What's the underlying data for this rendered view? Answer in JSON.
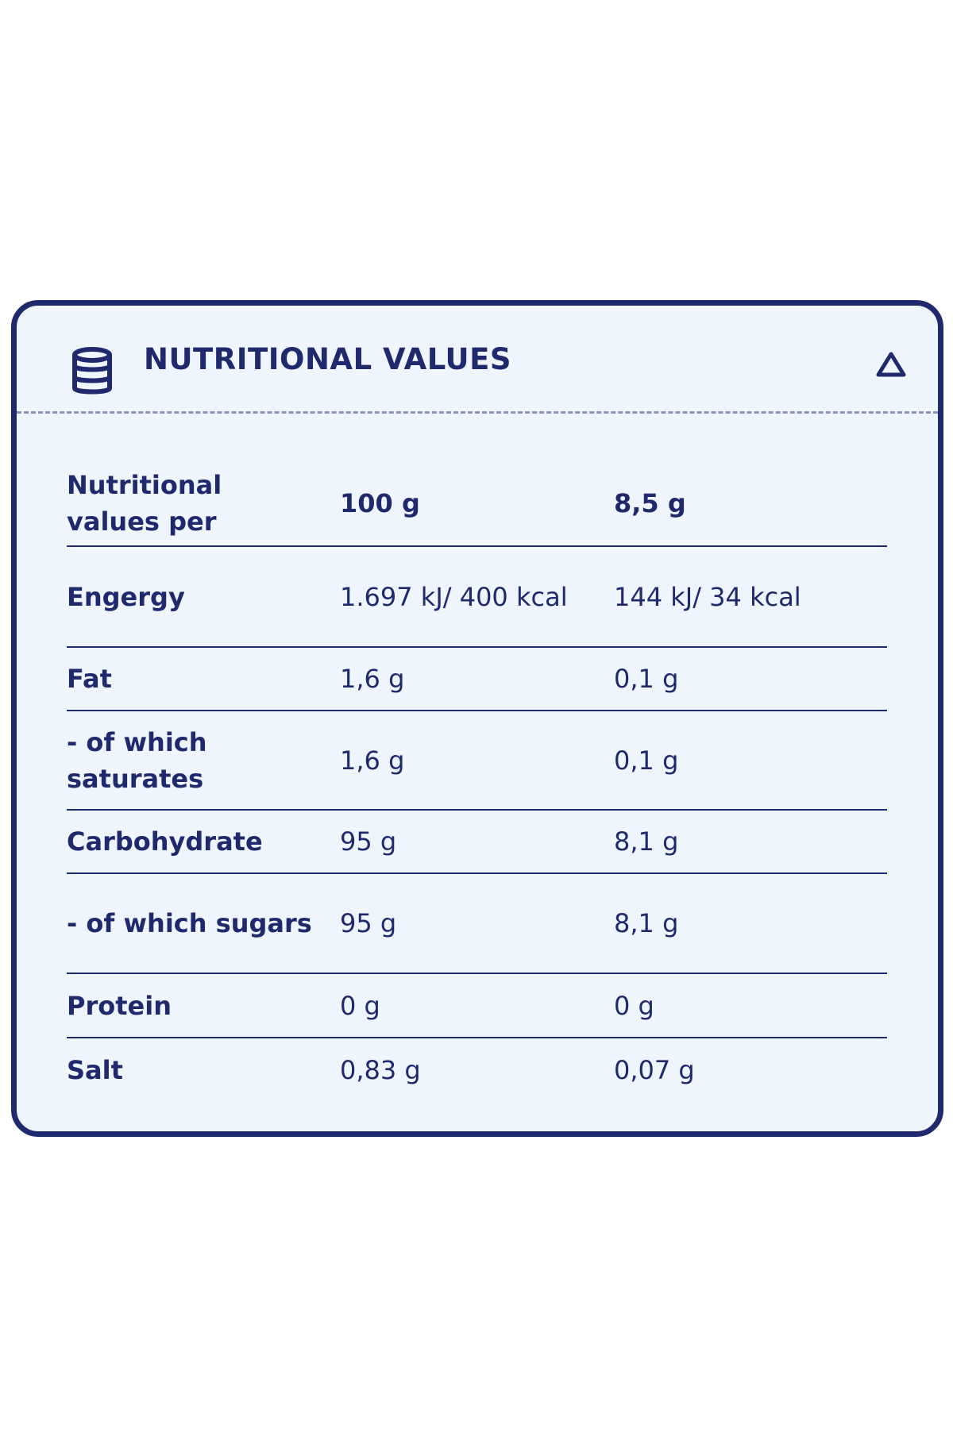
{
  "header": {
    "title": "NUTRITIONAL VALUES"
  },
  "table": {
    "columns": [
      "Nutritional values per",
      "100 g",
      "8,5 g"
    ],
    "rows": [
      [
        "Engergy",
        "1.697 kJ/ 400 kcal",
        "144 kJ/ 34 kcal"
      ],
      [
        "Fat",
        "1,6 g",
        "0,1 g"
      ],
      [
        "- of which saturates",
        "1,6 g",
        "0,1 g"
      ],
      [
        "Carbohydrate",
        "95 g",
        "8,1 g"
      ],
      [
        "- of which sugars",
        "95 g",
        "8,1 g"
      ],
      [
        "Protein",
        "0 g",
        "0 g"
      ],
      [
        "Salt",
        "0,83 g",
        "0,07 g"
      ]
    ]
  }
}
